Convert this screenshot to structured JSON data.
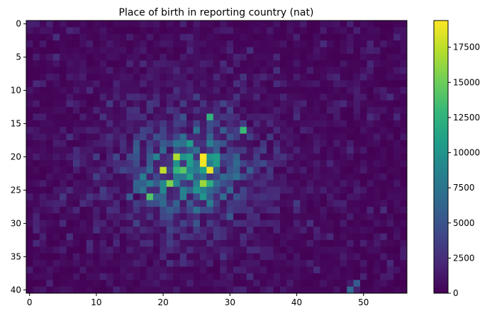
{
  "chart_data": {
    "type": "heatmap",
    "title": "Place of birth in reporting country (nat)",
    "xlabel": "",
    "ylabel": "",
    "n_cols": 57,
    "n_rows": 41,
    "x_ticks": [
      0,
      10,
      20,
      30,
      40,
      50
    ],
    "y_ticks": [
      0,
      5,
      10,
      15,
      20,
      25,
      30,
      35,
      40
    ],
    "colormap": "viridis",
    "color_range": [
      0,
      19400
    ],
    "colorbar_ticks": [
      0,
      2500,
      5000,
      7500,
      10000,
      12500,
      15000,
      17500
    ],
    "hotspots": [
      {
        "x": 26,
        "y": 20,
        "value": 19400
      },
      {
        "x": 27,
        "y": 22,
        "value": 18800
      },
      {
        "x": 26,
        "y": 21,
        "value": 19000
      },
      {
        "x": 20,
        "y": 22,
        "value": 17500
      },
      {
        "x": 22,
        "y": 20,
        "value": 17000
      },
      {
        "x": 26,
        "y": 24,
        "value": 16500
      },
      {
        "x": 21,
        "y": 24,
        "value": 15500
      },
      {
        "x": 18,
        "y": 26,
        "value": 14000
      },
      {
        "x": 32,
        "y": 16,
        "value": 13000
      },
      {
        "x": 27,
        "y": 14,
        "value": 12500
      },
      {
        "x": 48,
        "y": 40,
        "value": 6500
      },
      {
        "x": 49,
        "y": 39,
        "value": 5500
      }
    ]
  },
  "colors": {
    "viridis": [
      "#440154",
      "#482878",
      "#3e4989",
      "#31688e",
      "#26828e",
      "#1f9e89",
      "#35b779",
      "#6ece58",
      "#b5de2b",
      "#fde725"
    ]
  }
}
